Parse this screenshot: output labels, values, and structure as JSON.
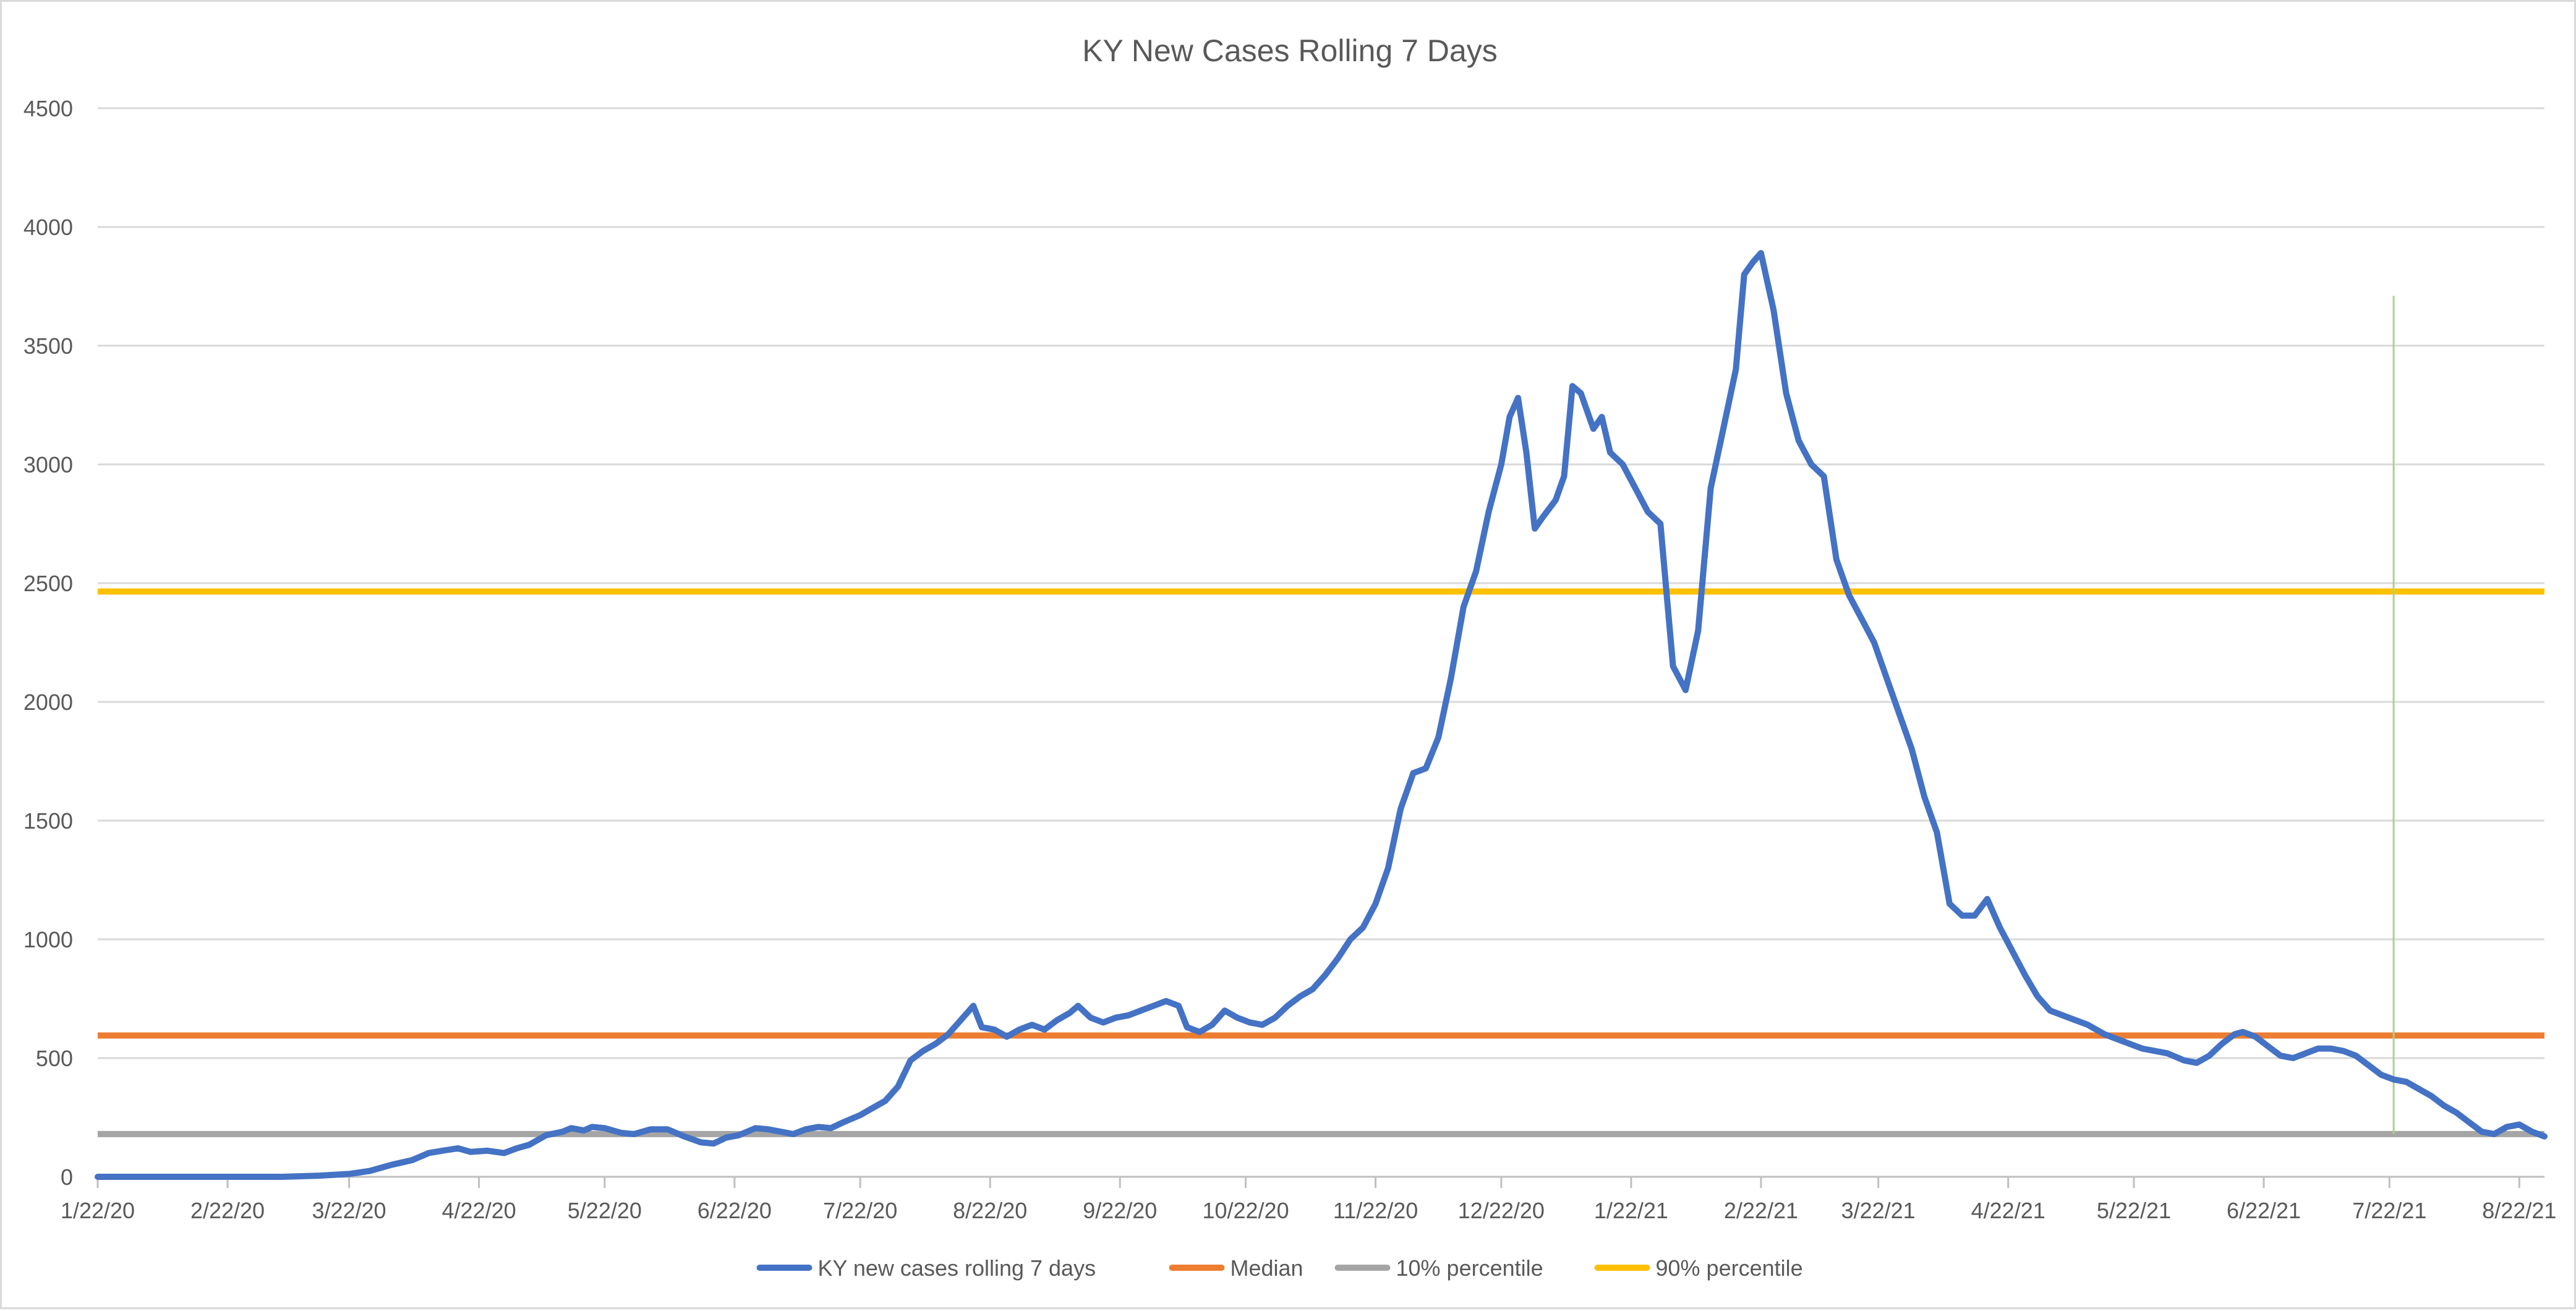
{
  "chart_data": {
    "type": "line",
    "title": "KY New Cases Rolling 7 Days",
    "xlabel": "",
    "ylabel": "",
    "ylim": [
      0,
      4500
    ],
    "yticks": [
      0,
      500,
      1000,
      1500,
      2000,
      2500,
      3000,
      3500,
      4000,
      4500
    ],
    "x_axis": {
      "type": "date",
      "start": "2020-01-22",
      "end": "2021-08-28",
      "tick_dates": [
        "2020-01-22",
        "2020-02-22",
        "2020-03-22",
        "2020-04-22",
        "2020-05-22",
        "2020-06-22",
        "2020-07-22",
        "2020-08-22",
        "2020-09-22",
        "2020-10-22",
        "2020-11-22",
        "2020-12-22",
        "2021-01-22",
        "2021-02-22",
        "2021-03-22",
        "2021-04-22",
        "2021-05-22",
        "2021-06-22",
        "2021-07-22",
        "2021-08-22"
      ],
      "tick_labels": [
        "1/22/20",
        "2/22/20",
        "3/22/20",
        "4/22/20",
        "5/22/20",
        "6/22/20",
        "7/22/20",
        "8/22/20",
        "9/22/20",
        "10/22/20",
        "11/22/20",
        "12/22/20",
        "1/22/21",
        "2/22/21",
        "3/22/21",
        "4/22/21",
        "5/22/21",
        "6/22/21",
        "7/22/21",
        "8/22/21"
      ]
    },
    "grid": true,
    "legend_position": "bottom",
    "series": [
      {
        "name": "KY new cases rolling 7 days",
        "color": "#4472c4",
        "points": [
          [
            "2020-01-22",
            0
          ],
          [
            "2020-02-22",
            0
          ],
          [
            "2020-03-06",
            0
          ],
          [
            "2020-03-15",
            5
          ],
          [
            "2020-03-22",
            12
          ],
          [
            "2020-03-27",
            25
          ],
          [
            "2020-04-01",
            50
          ],
          [
            "2020-04-06",
            70
          ],
          [
            "2020-04-10",
            100
          ],
          [
            "2020-04-14",
            112
          ],
          [
            "2020-04-17",
            120
          ],
          [
            "2020-04-20",
            105
          ],
          [
            "2020-04-24",
            110
          ],
          [
            "2020-04-28",
            100
          ],
          [
            "2020-05-01",
            120
          ],
          [
            "2020-05-04",
            135
          ],
          [
            "2020-05-08",
            175
          ],
          [
            "2020-05-12",
            190
          ],
          [
            "2020-05-14",
            205
          ],
          [
            "2020-05-17",
            195
          ],
          [
            "2020-05-19",
            210
          ],
          [
            "2020-05-22",
            205
          ],
          [
            "2020-05-26",
            185
          ],
          [
            "2020-05-29",
            180
          ],
          [
            "2020-06-02",
            200
          ],
          [
            "2020-06-06",
            200
          ],
          [
            "2020-06-10",
            170
          ],
          [
            "2020-06-14",
            145
          ],
          [
            "2020-06-17",
            140
          ],
          [
            "2020-06-20",
            165
          ],
          [
            "2020-06-23",
            175
          ],
          [
            "2020-06-27",
            205
          ],
          [
            "2020-06-30",
            200
          ],
          [
            "2020-07-03",
            190
          ],
          [
            "2020-07-06",
            180
          ],
          [
            "2020-07-09",
            200
          ],
          [
            "2020-07-12",
            210
          ],
          [
            "2020-07-15",
            205
          ],
          [
            "2020-07-18",
            230
          ],
          [
            "2020-07-22",
            260
          ],
          [
            "2020-07-25",
            290
          ],
          [
            "2020-07-28",
            320
          ],
          [
            "2020-07-31",
            380
          ],
          [
            "2020-08-03",
            490
          ],
          [
            "2020-08-06",
            530
          ],
          [
            "2020-08-09",
            560
          ],
          [
            "2020-08-12",
            600
          ],
          [
            "2020-08-15",
            660
          ],
          [
            "2020-08-18",
            720
          ],
          [
            "2020-08-20",
            630
          ],
          [
            "2020-08-23",
            620
          ],
          [
            "2020-08-26",
            590
          ],
          [
            "2020-08-29",
            620
          ],
          [
            "2020-09-01",
            640
          ],
          [
            "2020-09-04",
            620
          ],
          [
            "2020-09-07",
            660
          ],
          [
            "2020-09-10",
            690
          ],
          [
            "2020-09-12",
            720
          ],
          [
            "2020-09-15",
            670
          ],
          [
            "2020-09-18",
            650
          ],
          [
            "2020-09-21",
            670
          ],
          [
            "2020-09-24",
            680
          ],
          [
            "2020-09-27",
            700
          ],
          [
            "2020-09-30",
            720
          ],
          [
            "2020-10-03",
            740
          ],
          [
            "2020-10-06",
            720
          ],
          [
            "2020-10-08",
            630
          ],
          [
            "2020-10-11",
            610
          ],
          [
            "2020-10-14",
            640
          ],
          [
            "2020-10-17",
            700
          ],
          [
            "2020-10-20",
            670
          ],
          [
            "2020-10-23",
            650
          ],
          [
            "2020-10-26",
            640
          ],
          [
            "2020-10-29",
            670
          ],
          [
            "2020-11-01",
            720
          ],
          [
            "2020-11-04",
            760
          ],
          [
            "2020-11-07",
            790
          ],
          [
            "2020-11-10",
            850
          ],
          [
            "2020-11-13",
            920
          ],
          [
            "2020-11-16",
            1000
          ],
          [
            "2020-11-19",
            1050
          ],
          [
            "2020-11-22",
            1150
          ],
          [
            "2020-11-25",
            1300
          ],
          [
            "2020-11-28",
            1550
          ],
          [
            "2020-12-01",
            1700
          ],
          [
            "2020-12-04",
            1720
          ],
          [
            "2020-12-07",
            1850
          ],
          [
            "2020-12-10",
            2100
          ],
          [
            "2020-12-13",
            2400
          ],
          [
            "2020-12-16",
            2550
          ],
          [
            "2020-12-19",
            2800
          ],
          [
            "2020-12-22",
            3000
          ],
          [
            "2020-12-24",
            3200
          ],
          [
            "2020-12-26",
            3280
          ],
          [
            "2020-12-28",
            3050
          ],
          [
            "2020-12-30",
            2730
          ],
          [
            "2021-01-01",
            2780
          ],
          [
            "2021-01-04",
            2850
          ],
          [
            "2021-01-06",
            2950
          ],
          [
            "2021-01-08",
            3330
          ],
          [
            "2021-01-10",
            3300
          ],
          [
            "2021-01-13",
            3150
          ],
          [
            "2021-01-15",
            3200
          ],
          [
            "2021-01-17",
            3050
          ],
          [
            "2021-01-20",
            3000
          ],
          [
            "2021-01-23",
            2900
          ],
          [
            "2021-01-26",
            2800
          ],
          [
            "2021-01-29",
            2750
          ],
          [
            "2021-02-01",
            2150
          ],
          [
            "2021-02-04",
            2050
          ],
          [
            "2021-02-07",
            2300
          ],
          [
            "2021-02-10",
            2900
          ],
          [
            "2021-02-13",
            3150
          ],
          [
            "2021-02-16",
            3400
          ],
          [
            "2021-02-18",
            3800
          ],
          [
            "2021-02-20",
            3850
          ],
          [
            "2021-02-22",
            3890
          ],
          [
            "2021-02-25",
            3650
          ],
          [
            "2021-02-28",
            3300
          ],
          [
            "2021-03-03",
            3100
          ],
          [
            "2021-03-06",
            3000
          ],
          [
            "2021-03-09",
            2950
          ],
          [
            "2021-03-12",
            2600
          ],
          [
            "2021-03-15",
            2450
          ],
          [
            "2021-03-18",
            2350
          ],
          [
            "2021-03-21",
            2250
          ],
          [
            "2021-03-24",
            2100
          ],
          [
            "2021-03-27",
            1950
          ],
          [
            "2021-03-30",
            1800
          ],
          [
            "2021-04-02",
            1600
          ],
          [
            "2021-04-05",
            1450
          ],
          [
            "2021-04-08",
            1150
          ],
          [
            "2021-04-11",
            1100
          ],
          [
            "2021-04-14",
            1100
          ],
          [
            "2021-04-17",
            1170
          ],
          [
            "2021-04-20",
            1050
          ],
          [
            "2021-04-23",
            950
          ],
          [
            "2021-04-26",
            850
          ],
          [
            "2021-04-29",
            760
          ],
          [
            "2021-05-02",
            700
          ],
          [
            "2021-05-05",
            680
          ],
          [
            "2021-05-08",
            660
          ],
          [
            "2021-05-11",
            640
          ],
          [
            "2021-05-15",
            600
          ],
          [
            "2021-05-18",
            580
          ],
          [
            "2021-05-21",
            560
          ],
          [
            "2021-05-24",
            540
          ],
          [
            "2021-05-27",
            530
          ],
          [
            "2021-05-30",
            520
          ],
          [
            "2021-06-03",
            490
          ],
          [
            "2021-06-06",
            480
          ],
          [
            "2021-06-09",
            510
          ],
          [
            "2021-06-12",
            560
          ],
          [
            "2021-06-15",
            600
          ],
          [
            "2021-06-17",
            610
          ],
          [
            "2021-06-20",
            590
          ],
          [
            "2021-06-23",
            550
          ],
          [
            "2021-06-26",
            510
          ],
          [
            "2021-06-29",
            500
          ],
          [
            "2021-07-02",
            520
          ],
          [
            "2021-07-05",
            540
          ],
          [
            "2021-07-08",
            540
          ],
          [
            "2021-07-11",
            530
          ],
          [
            "2021-07-14",
            510
          ],
          [
            "2021-07-17",
            470
          ],
          [
            "2021-07-20",
            430
          ],
          [
            "2021-07-23",
            410
          ],
          [
            "2021-07-26",
            400
          ],
          [
            "2021-07-29",
            370
          ],
          [
            "2021-08-01",
            340
          ],
          [
            "2021-08-04",
            300
          ],
          [
            "2021-08-07",
            270
          ],
          [
            "2021-08-10",
            230
          ],
          [
            "2021-08-13",
            190
          ],
          [
            "2021-08-16",
            180
          ],
          [
            "2021-08-19",
            210
          ],
          [
            "2021-08-22",
            220
          ],
          [
            "2021-08-25",
            190
          ],
          [
            "2021-08-28",
            170
          ]
        ],
        "points_note": ""
      },
      {
        "name": "Median",
        "color": "#ed7d31",
        "constant": 595
      },
      {
        "name": "10% percentile",
        "color": "#a5a5a5",
        "constant": 180
      },
      {
        "name": "90% percentile",
        "color": "#ffc000",
        "constant": 2465
      }
    ],
    "vertical_marker": {
      "date": "2021-07-23",
      "top_value": 3710,
      "color": "#a9d18e"
    }
  }
}
